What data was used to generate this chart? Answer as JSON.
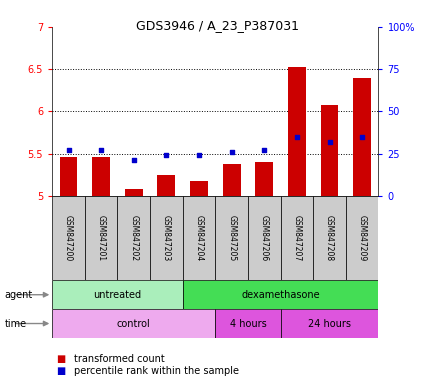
{
  "title": "GDS3946 / A_23_P387031",
  "samples": [
    "GSM847200",
    "GSM847201",
    "GSM847202",
    "GSM847203",
    "GSM847204",
    "GSM847205",
    "GSM847206",
    "GSM847207",
    "GSM847208",
    "GSM847209"
  ],
  "transformed_count": [
    5.46,
    5.46,
    5.08,
    5.25,
    5.18,
    5.38,
    5.4,
    6.52,
    6.07,
    6.4
  ],
  "percentile_rank": [
    27,
    27,
    21,
    24,
    24,
    26,
    27,
    35,
    32,
    35
  ],
  "ylim_left": [
    5.0,
    7.0
  ],
  "ylim_right": [
    0,
    100
  ],
  "yticks_left": [
    5.0,
    5.5,
    6.0,
    6.5,
    7.0
  ],
  "ytick_labels_left": [
    "5",
    "5.5",
    "6",
    "6.5",
    "7"
  ],
  "yticks_right": [
    0,
    25,
    50,
    75,
    100
  ],
  "ytick_labels_right": [
    "0",
    "25",
    "50",
    "75",
    "100%"
  ],
  "bar_color": "#cc0000",
  "dot_color": "#0000cc",
  "bar_bottom": 5.0,
  "agent_groups": [
    {
      "label": "untreated",
      "start": 0,
      "end": 4,
      "color": "#aaeebb"
    },
    {
      "label": "dexamethasone",
      "start": 4,
      "end": 10,
      "color": "#44dd55"
    }
  ],
  "time_groups": [
    {
      "label": "control",
      "start": 0,
      "end": 5,
      "color": "#eeaaee"
    },
    {
      "label": "4 hours",
      "start": 5,
      "end": 7,
      "color": "#dd55dd"
    },
    {
      "label": "24 hours",
      "start": 7,
      "end": 10,
      "color": "#dd55dd"
    }
  ],
  "dotted_gridlines": [
    5.5,
    6.0,
    6.5
  ],
  "bar_width": 0.55,
  "sample_box_color": "#cccccc",
  "plot_bg": "#ffffff"
}
